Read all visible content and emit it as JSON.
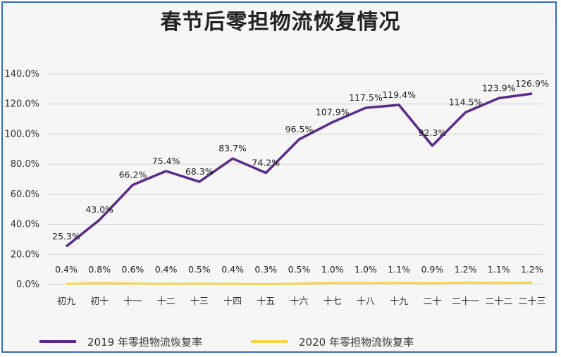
{
  "chart_data": {
    "type": "line",
    "title": "春节后零担物流恢复情况",
    "categories": [
      "初九",
      "初十",
      "十一",
      "十二",
      "十三",
      "十四",
      "十五",
      "十六",
      "十七",
      "十八",
      "十九",
      "二十",
      "二十一",
      "二十二",
      "二十三"
    ],
    "series": [
      {
        "name": "2019 年零担物流恢复率",
        "color": "#5b2a8c",
        "values": [
          25.3,
          43.0,
          66.2,
          75.4,
          68.3,
          83.7,
          74.2,
          96.5,
          107.9,
          117.5,
          119.4,
          92.3,
          114.5,
          123.9,
          126.9
        ],
        "labels": [
          "25.3%",
          "43.0%",
          "66.2%",
          "75.4%",
          "68.3%",
          "83.7%",
          "74.2%",
          "96.5%",
          "107.9%",
          "117.5%",
          "119.4%",
          "92.3%",
          "114.5%",
          "123.9%",
          "126.9%"
        ]
      },
      {
        "name": "2020 年零担物流恢复率",
        "color": "#f2d54a",
        "values": [
          0.4,
          0.8,
          0.6,
          0.4,
          0.5,
          0.4,
          0.3,
          0.5,
          1.0,
          1.0,
          1.1,
          0.9,
          1.2,
          1.1,
          1.2
        ],
        "labels": [
          "0.4%",
          "0.8%",
          "0.6%",
          "0.4%",
          "0.5%",
          "0.4%",
          "0.3%",
          "0.5%",
          "1.0%",
          "1.0%",
          "1.1%",
          "0.9%",
          "1.2%",
          "1.1%",
          "1.2%"
        ]
      }
    ],
    "ylim": [
      0,
      140
    ],
    "yticks": [
      "0.0%",
      "20.0%",
      "40.0%",
      "60.0%",
      "80.0%",
      "100.0%",
      "120.0%",
      "140.0%"
    ],
    "grid": true,
    "legend_position": "bottom"
  }
}
